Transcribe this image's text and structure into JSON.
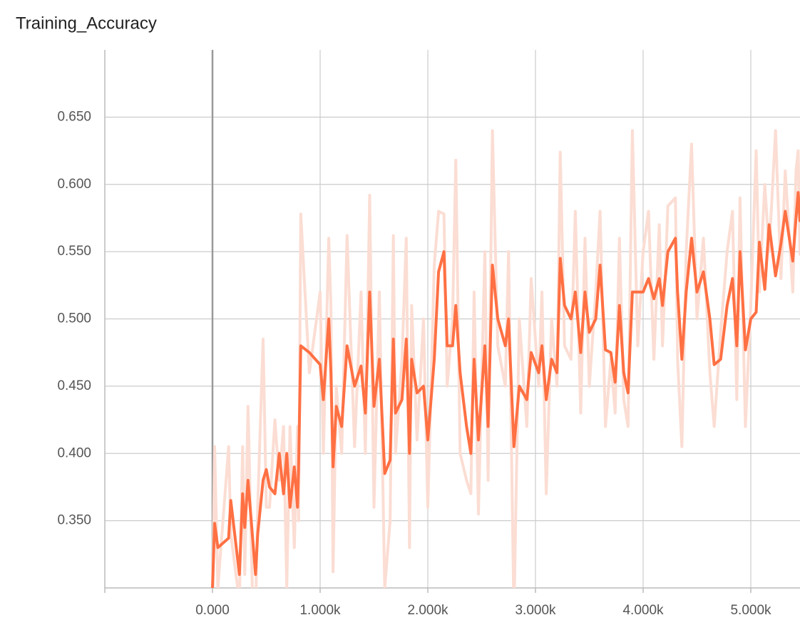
{
  "chart_data": {
    "type": "line",
    "title": "Training_Accuracy",
    "x": [
      0,
      20,
      50,
      150,
      170,
      250,
      280,
      300,
      330,
      370,
      400,
      420,
      470,
      500,
      530,
      580,
      620,
      660,
      690,
      720,
      760,
      790,
      800,
      820,
      900,
      1000,
      1030,
      1080,
      1100,
      1120,
      1150,
      1200,
      1250,
      1320,
      1380,
      1420,
      1460,
      1500,
      1550,
      1600,
      1650,
      1680,
      1700,
      1760,
      1800,
      1830,
      1850,
      1900,
      1960,
      2000,
      2060,
      2100,
      2150,
      2180,
      2230,
      2260,
      2300,
      2360,
      2400,
      2430,
      2470,
      2530,
      2560,
      2600,
      2650,
      2720,
      2750,
      2800,
      2850,
      2920,
      2960,
      3030,
      3060,
      3100,
      3150,
      3200,
      3230,
      3270,
      3330,
      3370,
      3420,
      3460,
      3500,
      3560,
      3600,
      3650,
      3700,
      3740,
      3780,
      3820,
      3860,
      3900,
      3950,
      4000,
      4050,
      4100,
      4150,
      4180,
      4230,
      4300,
      4320,
      4360,
      4400,
      4450,
      4500,
      4560,
      4620,
      4660,
      4720,
      4780,
      4830,
      4870,
      4900,
      4950,
      5000,
      5050,
      5080,
      5130,
      5170,
      5230,
      5280,
      5320,
      5390,
      5420,
      5440,
      5457
    ],
    "series": [
      {
        "color": "#fbddd3",
        "values": [
          0.28,
          0.405,
          0.3,
          0.405,
          0.34,
          0.29,
          0.405,
          0.31,
          0.435,
          0.3,
          0.28,
          0.36,
          0.485,
          0.36,
          0.36,
          0.425,
          0.38,
          0.42,
          0.3,
          0.42,
          0.33,
          0.42,
          0.35,
          0.578,
          0.46,
          0.52,
          0.4,
          0.56,
          0.51,
          0.312,
          0.45,
          0.4,
          0.562,
          0.405,
          0.52,
          0.4,
          0.592,
          0.36,
          0.52,
          0.3,
          0.35,
          0.562,
          0.4,
          0.47,
          0.56,
          0.33,
          0.51,
          0.41,
          0.5,
          0.36,
          0.54,
          0.58,
          0.578,
          0.45,
          0.5,
          0.618,
          0.4,
          0.38,
          0.37,
          0.52,
          0.355,
          0.55,
          0.38,
          0.64,
          0.48,
          0.45,
          0.55,
          0.28,
          0.5,
          0.42,
          0.53,
          0.45,
          0.52,
          0.37,
          0.5,
          0.45,
          0.624,
          0.48,
          0.47,
          0.58,
          0.43,
          0.56,
          0.45,
          0.52,
          0.58,
          0.42,
          0.47,
          0.43,
          0.56,
          0.44,
          0.42,
          0.64,
          0.48,
          0.55,
          0.58,
          0.47,
          0.57,
          0.48,
          0.584,
          0.59,
          0.47,
          0.405,
          0.55,
          0.63,
          0.5,
          0.56,
          0.46,
          0.42,
          0.49,
          0.55,
          0.58,
          0.44,
          0.59,
          0.42,
          0.51,
          0.625,
          0.52,
          0.6,
          0.55,
          0.64,
          0.53,
          0.61,
          0.52,
          0.61,
          0.625,
          0.548
        ]
      },
      {
        "color": "#ff7043",
        "values": [
          0.3,
          0.348,
          0.33,
          0.337,
          0.365,
          0.31,
          0.37,
          0.345,
          0.38,
          0.34,
          0.31,
          0.34,
          0.38,
          0.388,
          0.375,
          0.37,
          0.4,
          0.37,
          0.4,
          0.36,
          0.39,
          0.36,
          0.39,
          0.48,
          0.475,
          0.466,
          0.44,
          0.5,
          0.46,
          0.39,
          0.435,
          0.42,
          0.48,
          0.45,
          0.465,
          0.43,
          0.52,
          0.435,
          0.47,
          0.385,
          0.395,
          0.485,
          0.43,
          0.44,
          0.485,
          0.4,
          0.47,
          0.445,
          0.45,
          0.41,
          0.47,
          0.535,
          0.55,
          0.48,
          0.48,
          0.51,
          0.46,
          0.42,
          0.4,
          0.47,
          0.41,
          0.48,
          0.42,
          0.54,
          0.5,
          0.48,
          0.5,
          0.405,
          0.45,
          0.44,
          0.475,
          0.46,
          0.48,
          0.44,
          0.47,
          0.46,
          0.545,
          0.51,
          0.5,
          0.52,
          0.475,
          0.52,
          0.49,
          0.5,
          0.54,
          0.477,
          0.475,
          0.453,
          0.51,
          0.46,
          0.445,
          0.52,
          0.52,
          0.52,
          0.53,
          0.515,
          0.53,
          0.51,
          0.55,
          0.56,
          0.52,
          0.47,
          0.52,
          0.56,
          0.52,
          0.535,
          0.5,
          0.466,
          0.47,
          0.51,
          0.53,
          0.48,
          0.55,
          0.477,
          0.5,
          0.505,
          0.557,
          0.522,
          0.57,
          0.532,
          0.556,
          0.58,
          0.543,
          0.575,
          0.594,
          0.573
        ]
      }
    ],
    "xlim": [
      -1000,
      5457
    ],
    "ylim": [
      0.3,
      0.7
    ],
    "xticks": [
      {
        "value": 0,
        "label": "0.000"
      },
      {
        "value": 1000,
        "label": "1.000k"
      },
      {
        "value": 2000,
        "label": "2.000k"
      },
      {
        "value": 3000,
        "label": "3.000k"
      },
      {
        "value": 4000,
        "label": "4.000k"
      },
      {
        "value": 5000,
        "label": "5.000k"
      }
    ],
    "yticks": [
      {
        "value": 0.35,
        "label": "0.350"
      },
      {
        "value": 0.4,
        "label": "0.400"
      },
      {
        "value": 0.45,
        "label": "0.450"
      },
      {
        "value": 0.5,
        "label": "0.500"
      },
      {
        "value": 0.55,
        "label": "0.550"
      },
      {
        "value": 0.6,
        "label": "0.600"
      },
      {
        "value": 0.65,
        "label": "0.650"
      }
    ],
    "grid": true
  }
}
